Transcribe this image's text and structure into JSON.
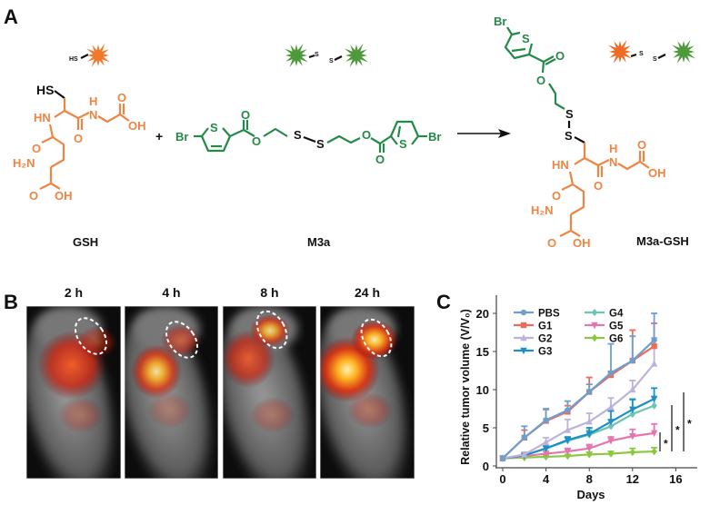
{
  "panel_labels": {
    "a": "A",
    "b": "B",
    "c": "C"
  },
  "panel_a": {
    "gsh": {
      "name": "GSH",
      "icon_label": "HS",
      "atoms": {
        "hs": "HS",
        "hn": "HN",
        "o1": "O",
        "n": "N",
        "h": "H",
        "o2": "O",
        "oh1": "OH",
        "o3": "O",
        "h2n": "H₂N",
        "o4": "O",
        "oh2": "OH"
      }
    },
    "plus": "+",
    "m3a": {
      "name": "M3a",
      "icon_s1": "S",
      "icon_s2": "S",
      "atoms": {
        "br1": "Br",
        "s_ring1": "S",
        "o_co1": "O",
        "o_est1": "O",
        "s1": "S",
        "s2": "S",
        "o_est2": "O",
        "o_co2": "O",
        "s_ring2": "S",
        "br2": "Br"
      }
    },
    "product": {
      "name": "M3a-GSH",
      "icon_s1": "S",
      "icon_s2": "S",
      "atoms": {
        "br": "Br",
        "s_ring": "S",
        "o_co": "O",
        "o_est": "O",
        "s1": "S",
        "s2": "S",
        "hn": "HN",
        "o1": "O",
        "n": "N",
        "h": "H",
        "o2": "O",
        "oh1": "OH",
        "o3": "O",
        "h2n": "H₂N",
        "o4": "O",
        "oh2": "OH"
      }
    },
    "colors": {
      "gsh": "#EF8443",
      "m3a": "#238A47",
      "bond": "#111111"
    }
  },
  "panel_b": {
    "timepoints": [
      "2 h",
      "4 h",
      "8 h",
      "24 h"
    ],
    "fluorescence_intensity": [
      "low",
      "medium",
      "high",
      "very high"
    ]
  },
  "chart_data": {
    "type": "line",
    "xlabel": "Days",
    "ylabel": "Relative tumor volume (V/V₀)",
    "xlim": [
      0,
      17
    ],
    "ylim": [
      0,
      20
    ],
    "xticks": [
      "0",
      "4",
      "8",
      "12",
      "16"
    ],
    "yticks": [
      "0",
      "5",
      "10",
      "15",
      "20"
    ],
    "legend_position": "top-left",
    "x": [
      0,
      2,
      4,
      6,
      8,
      10,
      12,
      14
    ],
    "series": [
      {
        "name": "PBS",
        "color": "#6A9FD0",
        "marker": "circle",
        "values": [
          1,
          3.7,
          6.0,
          7.3,
          9.7,
          12.2,
          13.8,
          16.5
        ],
        "errors": [
          0,
          1.5,
          1.5,
          1.2,
          1.0,
          3.8,
          3.2,
          3.5
        ]
      },
      {
        "name": "G1",
        "color": "#EE6A5A",
        "marker": "square",
        "values": [
          1,
          3.7,
          5.9,
          7.1,
          9.7,
          11.9,
          13.8,
          15.7
        ],
        "errors": [
          0,
          1.0,
          1.5,
          0.8,
          1.9,
          0.5,
          4.0,
          3.0
        ]
      },
      {
        "name": "G2",
        "color": "#BDB2DA",
        "marker": "triangle-up",
        "values": [
          1,
          1.5,
          3.1,
          4.7,
          5.8,
          7.7,
          10.0,
          13.4
        ],
        "errors": [
          0,
          0.3,
          0.6,
          1.4,
          1.1,
          1.2,
          1.2,
          3.4
        ]
      },
      {
        "name": "G3",
        "color": "#1C8FC7",
        "marker": "triangle-down",
        "values": [
          1,
          1.4,
          2.3,
          3.4,
          4.2,
          5.8,
          7.4,
          8.8
        ],
        "errors": [
          0,
          0.2,
          0.3,
          0.4,
          0.8,
          1.4,
          1.3,
          1.4
        ]
      },
      {
        "name": "G4",
        "color": "#6CC4B4",
        "marker": "diamond",
        "values": [
          1,
          1.4,
          2.3,
          3.3,
          4.1,
          5.2,
          6.8,
          7.9
        ],
        "errors": [
          0,
          0.2,
          0.3,
          0.4,
          0.6,
          0.8,
          2.0,
          1.2
        ]
      },
      {
        "name": "G5",
        "color": "#E476AE",
        "marker": "triangle-down",
        "values": [
          1,
          1.3,
          1.6,
          1.9,
          2.3,
          3.3,
          3.9,
          4.3
        ],
        "errors": [
          0,
          0.2,
          0.3,
          0.4,
          0.5,
          0.5,
          0.9,
          1.2
        ]
      },
      {
        "name": "G6",
        "color": "#8CC83F",
        "marker": "diamond",
        "values": [
          1,
          1.1,
          1.2,
          1.3,
          1.5,
          1.6,
          1.8,
          1.9
        ],
        "errors": [
          0,
          0.1,
          0.2,
          0.2,
          0.3,
          0.3,
          0.5,
          0.5
        ]
      }
    ],
    "significance": [
      {
        "label": "*",
        "between": [
          "G5",
          "G6"
        ]
      },
      {
        "label": "*",
        "between": [
          "G3",
          "G6"
        ]
      },
      {
        "label": "*",
        "between": [
          "PBS",
          "G6"
        ]
      }
    ]
  }
}
